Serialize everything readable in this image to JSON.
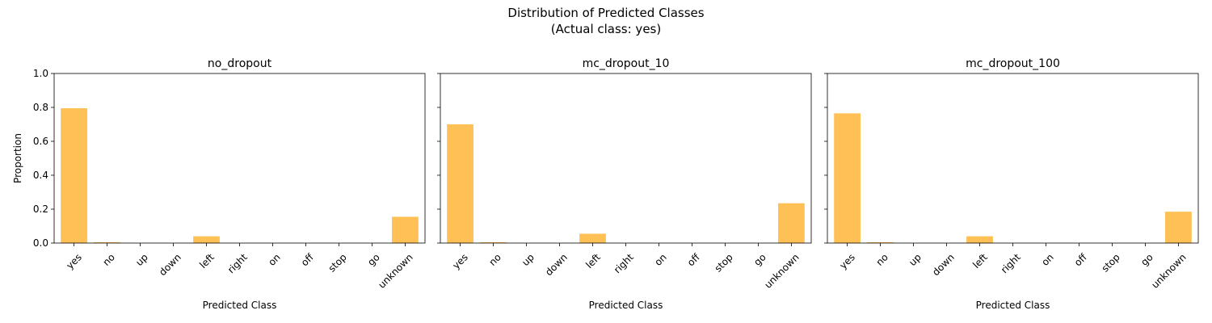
{
  "figure": {
    "title_line1": "Distribution of Predicted Classes",
    "title_line2": "(Actual class: yes)"
  },
  "chart_data": [
    {
      "type": "bar",
      "title": "no_dropout",
      "xlabel": "Predicted Class",
      "ylabel": "Proportion",
      "ylim": [
        0,
        1.0
      ],
      "yticks": [
        "0.0",
        "0.2",
        "0.4",
        "0.6",
        "0.8",
        "1.0"
      ],
      "categories": [
        "yes",
        "no",
        "up",
        "down",
        "left",
        "right",
        "on",
        "off",
        "stop",
        "go",
        "unknown"
      ],
      "values": [
        0.795,
        0.005,
        0,
        0,
        0.04,
        0,
        0,
        0,
        0,
        0,
        0.155
      ],
      "color": "#ffbe4d"
    },
    {
      "type": "bar",
      "title": "mc_dropout_10",
      "xlabel": "Predicted Class",
      "ylabel": "",
      "ylim": [
        0,
        1.0
      ],
      "yticks": [],
      "categories": [
        "yes",
        "no",
        "up",
        "down",
        "left",
        "right",
        "on",
        "off",
        "stop",
        "go",
        "unknown"
      ],
      "values": [
        0.7,
        0.005,
        0,
        0,
        0.055,
        0,
        0,
        0,
        0,
        0,
        0.235
      ],
      "color": "#ffbe4d"
    },
    {
      "type": "bar",
      "title": "mc_dropout_100",
      "xlabel": "Predicted Class",
      "ylabel": "",
      "ylim": [
        0,
        1.0
      ],
      "yticks": [],
      "categories": [
        "yes",
        "no",
        "up",
        "down",
        "left",
        "right",
        "on",
        "off",
        "stop",
        "go",
        "unknown"
      ],
      "values": [
        0.765,
        0.005,
        0,
        0,
        0.04,
        0,
        0,
        0,
        0,
        0,
        0.185
      ],
      "color": "#ffbe4d"
    }
  ]
}
